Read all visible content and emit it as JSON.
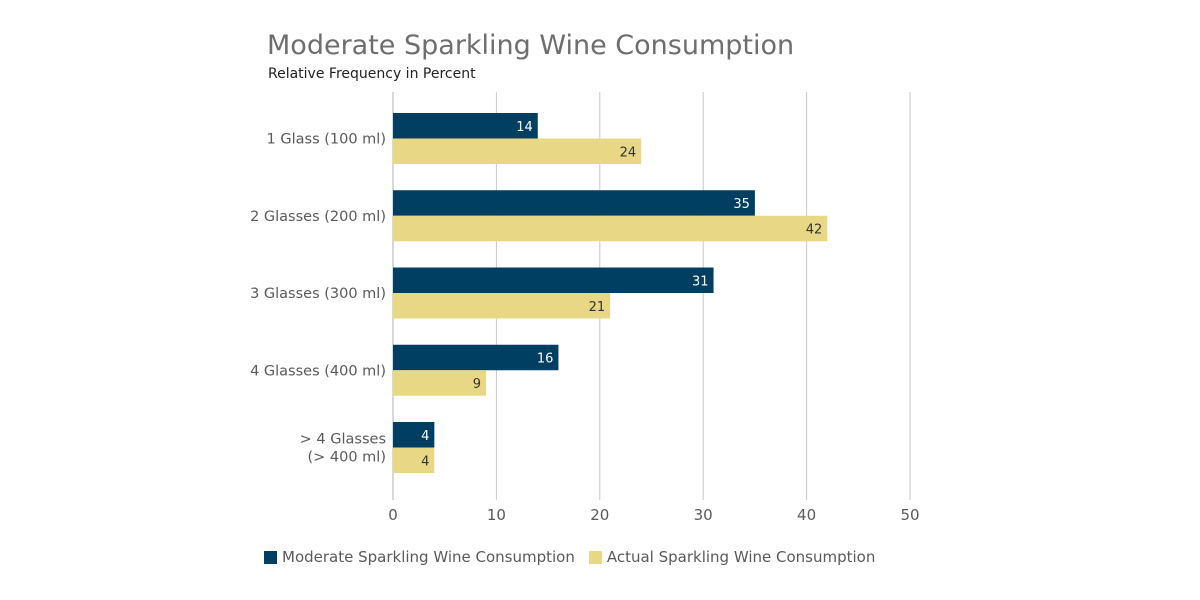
{
  "chart_data": {
    "type": "bar",
    "orientation": "horizontal",
    "title": "Moderate Sparkling Wine Consumption",
    "subtitle": "Relative Frequency in Percent",
    "categories": [
      [
        "1 Glass (100 ml)"
      ],
      [
        "2 Glasses (200 ml)"
      ],
      [
        "3 Glasses (300 ml)"
      ],
      [
        "4 Glasses (400 ml)"
      ],
      [
        "> 4 Glasses",
        "(> 400 ml)"
      ]
    ],
    "series": [
      {
        "name": "Moderate Sparkling Wine Consumption",
        "values": [
          14,
          35,
          31,
          16,
          4
        ],
        "color": "#003f62",
        "label_color": "#ffffff"
      },
      {
        "name": "Actual Sparkling Wine Consumption",
        "values": [
          24,
          42,
          21,
          9,
          4
        ],
        "color": "#e8d886",
        "label_color": "#333333"
      }
    ],
    "xlim": [
      0,
      50
    ],
    "xticks": [
      "0",
      "10",
      "20",
      "30",
      "40",
      "50"
    ],
    "grid": "vertical",
    "legend_position": "bottom-left"
  }
}
